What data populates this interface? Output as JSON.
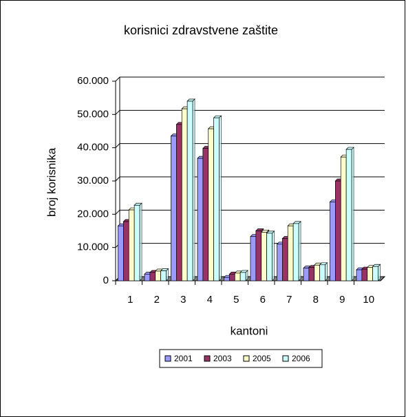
{
  "chart_data": {
    "type": "bar",
    "title": "korisnici zdravstvene zaštite",
    "y_label": "broj korisnika",
    "x_label": "kantoni",
    "categories": [
      "1",
      "2",
      "3",
      "4",
      "5",
      "6",
      "7",
      "8",
      "9",
      "10"
    ],
    "series": [
      {
        "name": "2001",
        "color": "#9999ff",
        "values": [
          16500,
          2000,
          43500,
          36800,
          1000,
          13300,
          11000,
          3800,
          23700,
          3300
        ]
      },
      {
        "name": "2003",
        "color": "#993366",
        "values": [
          17800,
          2500,
          47000,
          39800,
          2000,
          15000,
          12700,
          4000,
          30000,
          3500
        ]
      },
      {
        "name": "2005",
        "color": "#ffffcc",
        "values": [
          21300,
          2900,
          51700,
          45700,
          2300,
          14600,
          16500,
          4700,
          37200,
          4000
        ]
      },
      {
        "name": "2006",
        "color": "#ccffff",
        "values": [
          22700,
          3000,
          54000,
          49000,
          2500,
          14300,
          17200,
          4800,
          39500,
          4300
        ]
      }
    ],
    "ylim": [
      0,
      60000
    ],
    "yticks": [
      0,
      {
        "value": 10000,
        "label": "10.000"
      },
      {
        "value": 20000,
        "label": "20.000"
      },
      {
        "value": 30000,
        "label": "30.000"
      },
      {
        "value": 40000,
        "label": "40.000"
      },
      {
        "value": 50000,
        "label": "50.000"
      },
      {
        "value": 60000,
        "label": "60.000"
      }
    ],
    "grid": true,
    "legend": "bottom"
  }
}
